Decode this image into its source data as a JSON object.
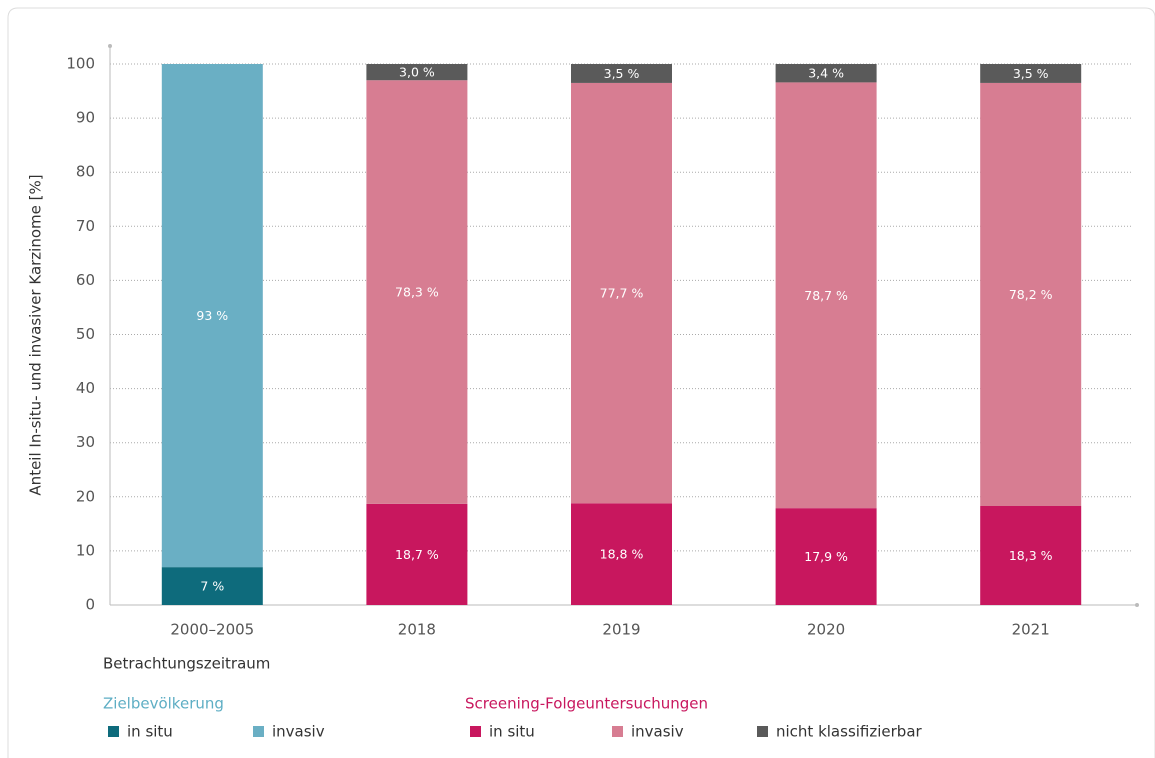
{
  "chart_data": {
    "type": "stacked_bar",
    "ylabel": "Anteil In-situ- und invasiver Karzinome [%]",
    "xlabel": "Betrachtungszeitraum",
    "categories": [
      "2000–2005",
      "2018",
      "2019",
      "2020",
      "2021"
    ],
    "ylim": [
      0,
      100
    ],
    "yticks": [
      0,
      10,
      20,
      30,
      40,
      50,
      60,
      70,
      80,
      90,
      100
    ],
    "grid": true,
    "groups": [
      {
        "title": "Zielbevölkerung",
        "color": "#5eaec4",
        "series": [
          {
            "name": "in situ",
            "color": "#0e6b7c",
            "values": [
              7,
              null,
              null,
              null,
              null
            ],
            "value_labels": [
              "7 %",
              null,
              null,
              null,
              null
            ]
          },
          {
            "name": "invasiv",
            "color": "#6aafc4",
            "values": [
              93,
              null,
              null,
              null,
              null
            ],
            "value_labels": [
              "93 %",
              null,
              null,
              null,
              null
            ]
          }
        ]
      },
      {
        "title": "Screening-Folgeuntersuchungen",
        "color": "#c8175e",
        "series": [
          {
            "name": "in situ",
            "color": "#c8175e",
            "values": [
              null,
              18.7,
              18.8,
              17.9,
              18.3
            ],
            "value_labels": [
              null,
              "18,7 %",
              "18,8 %",
              "17,9 %",
              "18,3 %"
            ]
          },
          {
            "name": "invasiv",
            "color": "#d77d92",
            "values": [
              null,
              78.3,
              77.7,
              78.7,
              78.2
            ],
            "value_labels": [
              null,
              "78,3 %",
              "77,7 %",
              "78,7 %",
              "78,2 %"
            ]
          },
          {
            "name": "nicht klassifizierbar",
            "color": "#5a5a5a",
            "values": [
              null,
              3.0,
              3.5,
              3.4,
              3.5
            ],
            "value_labels": [
              null,
              "3,0 %",
              "3,5 %",
              "3,4 %",
              "3,5 %"
            ]
          }
        ]
      }
    ]
  }
}
